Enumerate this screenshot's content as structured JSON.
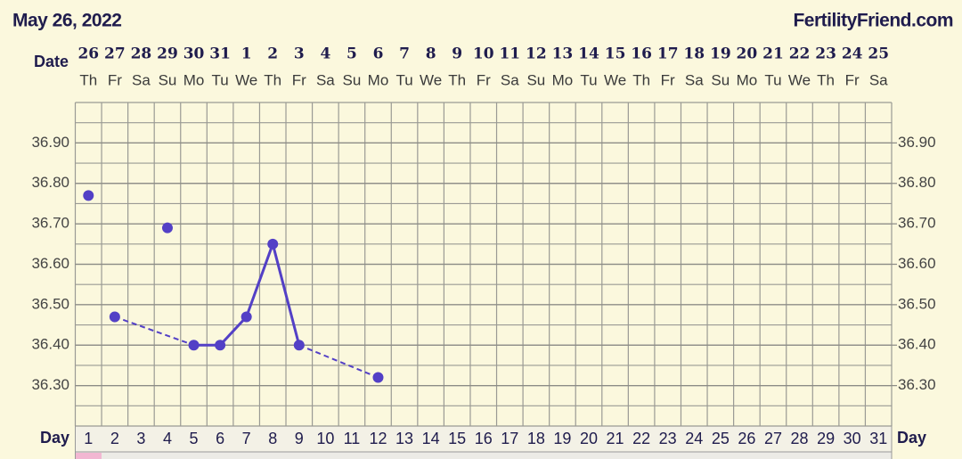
{
  "chart_data": {
    "type": "line",
    "title": "May 26, 2022",
    "site": "FertilityFriend.com",
    "date_label": "Date",
    "day_label": "Day",
    "dates": [
      26,
      27,
      28,
      29,
      30,
      31,
      1,
      2,
      3,
      4,
      5,
      6,
      7,
      8,
      9,
      10,
      11,
      12,
      13,
      14,
      15,
      16,
      17,
      18,
      19,
      20,
      21,
      22,
      23,
      24,
      25
    ],
    "weekdays": [
      "Th",
      "Fr",
      "Sa",
      "Su",
      "Mo",
      "Tu",
      "We",
      "Th",
      "Fr",
      "Sa",
      "Su",
      "Mo",
      "Tu",
      "We",
      "Th",
      "Fr",
      "Sa",
      "Su",
      "Mo",
      "Tu",
      "We",
      "Th",
      "Fr",
      "Sa",
      "Su",
      "Mo",
      "Tu",
      "We",
      "Th",
      "Fr",
      "Sa"
    ],
    "categories": [
      1,
      2,
      3,
      4,
      5,
      6,
      7,
      8,
      9,
      10,
      11,
      12,
      13,
      14,
      15,
      16,
      17,
      18,
      19,
      20,
      21,
      22,
      23,
      24,
      25,
      26,
      27,
      28,
      29,
      30,
      31
    ],
    "series": [
      {
        "color": "#5340c6",
        "line": true,
        "values": [
          null,
          36.47,
          null,
          null,
          36.4,
          36.4,
          36.47,
          36.65,
          36.4,
          null,
          null,
          36.32,
          null,
          null,
          null,
          null,
          null,
          null,
          null,
          null,
          null,
          null,
          null,
          null,
          null,
          null,
          null,
          null,
          null,
          null,
          null
        ]
      },
      {
        "color": "#5340c6",
        "line": false,
        "values": [
          36.77,
          null,
          null,
          36.69,
          null,
          null,
          null,
          null,
          null,
          null,
          null,
          null,
          null,
          null,
          null,
          null,
          null,
          null,
          null,
          null,
          null,
          null,
          null,
          null,
          null,
          null,
          null,
          null,
          null,
          null,
          null
        ]
      }
    ],
    "ylim": [
      36.2,
      37.0
    ],
    "yticks": [
      {
        "value": 36.3,
        "label": "36.30"
      },
      {
        "value": 36.4,
        "label": "36.40"
      },
      {
        "value": 36.5,
        "label": "36.50"
      },
      {
        "value": 36.6,
        "label": "36.60"
      },
      {
        "value": 36.7,
        "label": "36.70"
      },
      {
        "value": 36.8,
        "label": "36.80"
      },
      {
        "value": 36.9,
        "label": "36.90"
      }
    ],
    "grid": true
  }
}
